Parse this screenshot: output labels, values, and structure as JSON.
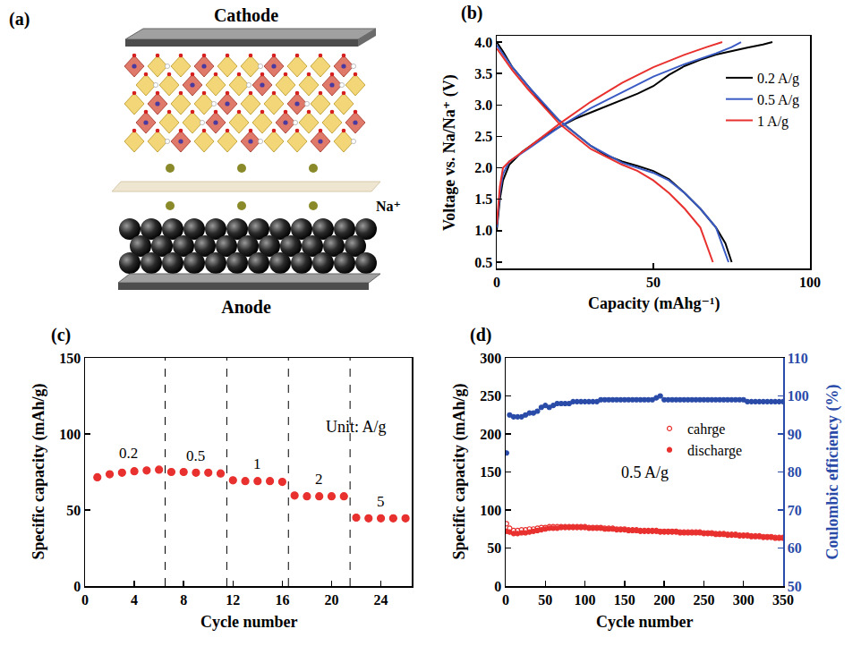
{
  "diagram": {
    "panel": "(a)",
    "cathode": "Cathode",
    "anode": "Anode",
    "ion": "Na⁺"
  },
  "chart_data": [
    {
      "panel": "(b)",
      "type": "line",
      "x_label": "Capacity (mAhg⁻¹)",
      "y_label": "Voltage vs. Na/Na⁺ (V)",
      "xlim": [
        0,
        100
      ],
      "xticks": [
        0,
        50,
        100
      ],
      "ylim": [
        0.4,
        4.1
      ],
      "yticks": [
        0.5,
        {
          "value": 1,
          "label": "1.0"
        },
        1.5,
        {
          "value": 2,
          "label": "2.0"
        },
        2.5,
        {
          "value": 3,
          "label": "3.0"
        },
        3.5,
        {
          "value": 4,
          "label": "4.0"
        }
      ],
      "legend": "upper right",
      "series": [
        {
          "name": "0.2 A/g",
          "color": "#000000",
          "x": [
            0,
            2,
            5,
            10,
            15,
            20,
            25,
            30,
            35,
            40,
            45,
            50,
            55,
            60,
            65,
            70,
            73,
            75,
            null,
            0,
            1,
            2,
            4,
            8,
            15,
            20,
            25,
            30,
            35,
            40,
            45,
            50,
            55,
            60,
            65,
            70,
            75,
            80,
            85,
            88
          ],
          "values": [
            4.0,
            3.85,
            3.6,
            3.3,
            3.0,
            2.75,
            2.55,
            2.35,
            2.2,
            2.1,
            2.03,
            1.95,
            1.82,
            1.6,
            1.35,
            1.05,
            0.8,
            0.5,
            null,
            1.0,
            1.5,
            1.8,
            2.05,
            2.25,
            2.5,
            2.65,
            2.78,
            2.88,
            2.98,
            3.08,
            3.18,
            3.3,
            3.48,
            3.62,
            3.72,
            3.8,
            3.86,
            3.91,
            3.96,
            4.0
          ]
        },
        {
          "name": "0.5 A/g",
          "color": "#3b5bc4",
          "x": [
            0,
            5,
            10,
            20,
            30,
            40,
            50,
            55,
            60,
            65,
            70,
            74,
            null,
            0,
            1,
            2,
            4,
            10,
            20,
            30,
            40,
            50,
            60,
            70,
            75,
            78
          ],
          "values": [
            3.95,
            3.6,
            3.3,
            2.75,
            2.35,
            2.08,
            1.92,
            1.8,
            1.6,
            1.35,
            1.05,
            0.5,
            null,
            1.05,
            1.6,
            1.9,
            2.1,
            2.3,
            2.65,
            2.95,
            3.2,
            3.45,
            3.65,
            3.82,
            3.92,
            4.0
          ]
        },
        {
          "name": "1 A/g",
          "color": "#e8312f",
          "x": [
            0,
            5,
            10,
            20,
            30,
            40,
            45,
            50,
            55,
            60,
            65,
            69,
            null,
            0,
            1,
            2,
            4,
            10,
            20,
            30,
            40,
            50,
            60,
            67,
            72
          ],
          "values": [
            3.9,
            3.55,
            3.25,
            2.7,
            2.3,
            2.05,
            1.95,
            1.8,
            1.6,
            1.35,
            1.05,
            0.5,
            null,
            1.1,
            1.7,
            2.0,
            2.1,
            2.32,
            2.7,
            3.05,
            3.35,
            3.6,
            3.8,
            3.92,
            4.0
          ]
        }
      ]
    },
    {
      "panel": "(c)",
      "type": "scatter",
      "x_label": "Cycle number",
      "y_label": "Specific capacity (mAh/g)",
      "x": [
        1,
        2,
        3,
        4,
        5,
        6,
        7,
        8,
        9,
        10,
        11,
        12,
        13,
        14,
        15,
        16,
        17,
        18,
        19,
        20,
        21,
        22,
        23,
        24,
        25,
        26
      ],
      "values": [
        71.5,
        73.5,
        74.5,
        75.5,
        76,
        76.5,
        75,
        75,
        74.5,
        74.5,
        74,
        69.5,
        69,
        69,
        69,
        68.5,
        59.5,
        59,
        59,
        59,
        59,
        45,
        44.5,
        44.5,
        44.5,
        44.5
      ],
      "color": "#e8312f",
      "marker": "circle",
      "xlim": [
        0,
        26.5
      ],
      "xticks": [
        0,
        4,
        8,
        12,
        16,
        20,
        24
      ],
      "ylim": [
        0,
        150
      ],
      "yticks": [
        0,
        50,
        100,
        150
      ],
      "dividers": [
        6.5,
        11.5,
        16.5,
        21.5
      ],
      "rate_labels": [
        "0.2",
        "0.5",
        "1",
        "2",
        "5"
      ],
      "annotations": [
        {
          "text": "Unit: A/g",
          "x": 22,
          "y": 105
        }
      ]
    },
    {
      "panel": "(d)",
      "type": "scatter",
      "x_label": "Cycle number",
      "y_label": "Specific capacity (mAh/g)",
      "y2_label": "Coulombic efficiency (%)",
      "x": [
        1,
        5,
        10,
        15,
        20,
        25,
        30,
        35,
        40,
        45,
        50,
        55,
        60,
        65,
        70,
        75,
        80,
        85,
        90,
        95,
        100,
        105,
        110,
        115,
        120,
        125,
        130,
        135,
        140,
        145,
        150,
        155,
        160,
        165,
        170,
        175,
        180,
        185,
        190,
        195,
        200,
        205,
        210,
        215,
        220,
        225,
        230,
        235,
        240,
        245,
        250,
        255,
        260,
        265,
        270,
        275,
        280,
        285,
        290,
        295,
        300,
        305,
        310,
        315,
        320,
        325,
        330,
        335,
        340,
        345,
        350
      ],
      "xlim": [
        0,
        350
      ],
      "xticks": [
        0,
        50,
        100,
        150,
        200,
        250,
        300,
        350
      ],
      "ylim": [
        0,
        300
      ],
      "yticks": [
        0,
        50,
        100,
        150,
        200,
        250,
        300
      ],
      "y2lim": [
        50,
        110
      ],
      "y2ticks": [
        50,
        60,
        70,
        80,
        90,
        100,
        110
      ],
      "legend": "upper right",
      "series": [
        {
          "name": "cahrge",
          "color": "#e8312f",
          "marker": "circle-open",
          "values": [
            82,
            76,
            73,
            73,
            74,
            74,
            75,
            75,
            76,
            77,
            77,
            78,
            78,
            78,
            78,
            78,
            78,
            78,
            78,
            78,
            78,
            77,
            77,
            77,
            77,
            76,
            76,
            76,
            75,
            75,
            75,
            74,
            74,
            74,
            73,
            73,
            73,
            73,
            73,
            72,
            72,
            72,
            72,
            72,
            71,
            71,
            71,
            71,
            71,
            71,
            70,
            70,
            70,
            69,
            69,
            69,
            68,
            68,
            68,
            67,
            67,
            67,
            66,
            66,
            66,
            65,
            65,
            65,
            64,
            64,
            64
          ]
        },
        {
          "name": "discharge",
          "color": "#e8312f",
          "marker": "circle",
          "values": [
            72,
            71,
            69,
            69,
            70,
            70,
            71,
            72,
            73,
            74,
            75,
            76,
            76,
            76,
            77,
            77,
            77,
            77,
            77,
            77,
            77,
            76,
            76,
            76,
            76,
            75,
            75,
            75,
            74,
            74,
            74,
            73,
            73,
            73,
            72,
            72,
            72,
            72,
            72,
            71,
            71,
            71,
            71,
            71,
            70,
            70,
            70,
            70,
            70,
            70,
            69,
            69,
            69,
            68,
            68,
            68,
            67,
            67,
            67,
            66,
            66,
            66,
            65,
            65,
            65,
            64,
            64,
            64,
            63,
            63,
            63
          ]
        },
        {
          "color": "#2a4ba8",
          "axis": "y2",
          "marker": "circle",
          "values": [
            85,
            95,
            94.5,
            94.5,
            94.5,
            95,
            95.5,
            95.5,
            96,
            97,
            97.5,
            97,
            97.5,
            98,
            98,
            98,
            98,
            98.5,
            98.5,
            98.5,
            98.5,
            98.5,
            98.5,
            98.5,
            99,
            99,
            99,
            99,
            99,
            99,
            99,
            99,
            99,
            99,
            99,
            99,
            99,
            99,
            99.5,
            100,
            99,
            99,
            99,
            99,
            99,
            99,
            99,
            99,
            99,
            99,
            99,
            99,
            99,
            99,
            99,
            99,
            99,
            99,
            99,
            99,
            99,
            98.5,
            98.5,
            98.5,
            98.5,
            98.5,
            98.5,
            98.5,
            98.5,
            98.5,
            98.5
          ]
        }
      ],
      "annotations": [
        {
          "text": "0.5 A/g",
          "x": 175,
          "y": 150
        }
      ]
    }
  ]
}
